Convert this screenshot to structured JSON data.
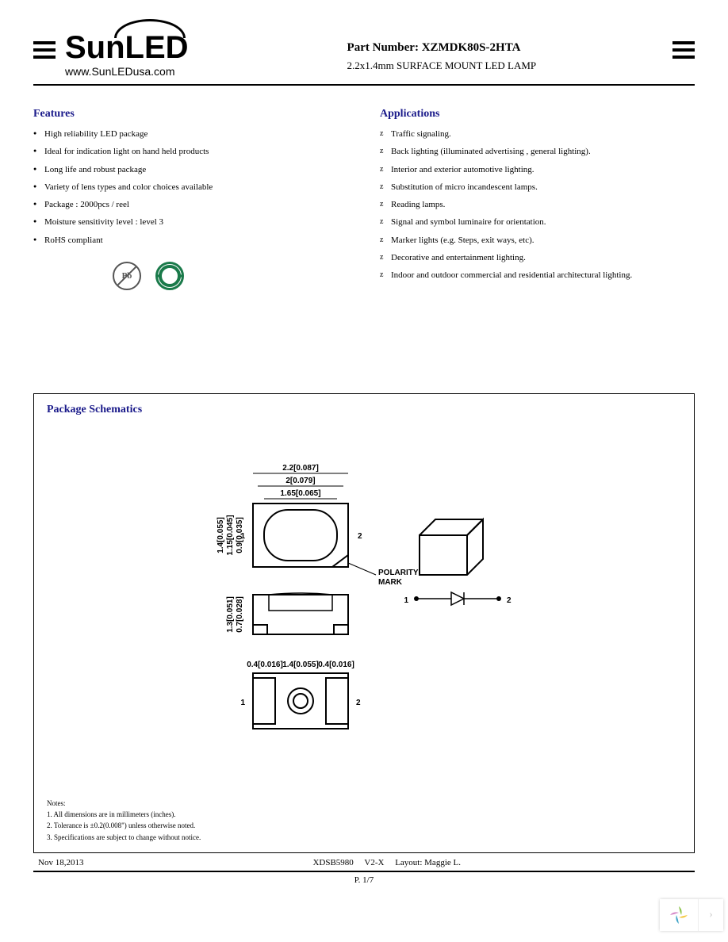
{
  "logo": {
    "brand_sun": "Sun",
    "brand_led": "LED",
    "url": "www.SunLEDusa.com"
  },
  "header": {
    "part_label": "Part Number:",
    "part_number": "XZMDK80S-2HTA",
    "description": "2.2x1.4mm SURFACE MOUNT LED LAMP"
  },
  "features": {
    "title": "Features",
    "items": [
      "High reliability LED package",
      "Ideal for indication light on hand held products",
      "Long life and robust package",
      "Variety of lens types and color choices available",
      "Package : 2000pcs / reel",
      "Moisture sensitivity level : level 3",
      "RoHS compliant"
    ]
  },
  "applications": {
    "title": "Applications",
    "items": [
      "Traffic signaling.",
      "Back lighting (illuminated advertising , general lighting).",
      "Interior and exterior automotive lighting.",
      "Substitution of micro incandescent lamps.",
      "Reading lamps.",
      "Signal and symbol luminaire for orientation.",
      "Marker lights (e.g. Steps, exit ways, etc).",
      "Decorative and entertainment lighting.",
      "Indoor and outdoor commercial and residential architectural lighting."
    ]
  },
  "compliance": {
    "pb_label": "Pb",
    "green_label": "e"
  },
  "schematics": {
    "title": "Package Schematics",
    "dims": {
      "w1": "2.2[0.087]",
      "w2": "2[0.079]",
      "w3": "1.65[0.065]",
      "h1": "1.4[0.055]",
      "h2": "1.15[0.045]",
      "h3": "0.9[0.035]",
      "d1": "1.3[0.051]",
      "d2": "0.7[0.028]",
      "b1": "0.4[0.016]",
      "b2": "1.4[0.055]",
      "b3": "0.4[0.016]",
      "pin1": "1",
      "pin2": "2",
      "polarity": "POLARITY",
      "mark": "MARK"
    },
    "notes_title": "Notes:",
    "notes": [
      "1. All dimensions are in millimeters (inches).",
      "2. Tolerance is ±0.2(0.008\") unless otherwise noted.",
      "3. Specifications are subject to change without notice."
    ]
  },
  "footer": {
    "date": "Nov 18,2013",
    "code": "XDSB5980",
    "version": "V2-X",
    "layout": "Layout: Maggie L.",
    "page": "P. 1/7"
  },
  "colors": {
    "title_color": "#1a1a8a",
    "green": "#1a7a4a",
    "widget_y": "#f5c842",
    "widget_g": "#8bc34a",
    "widget_b": "#42a5c8",
    "widget_p": "#d68bc8"
  }
}
